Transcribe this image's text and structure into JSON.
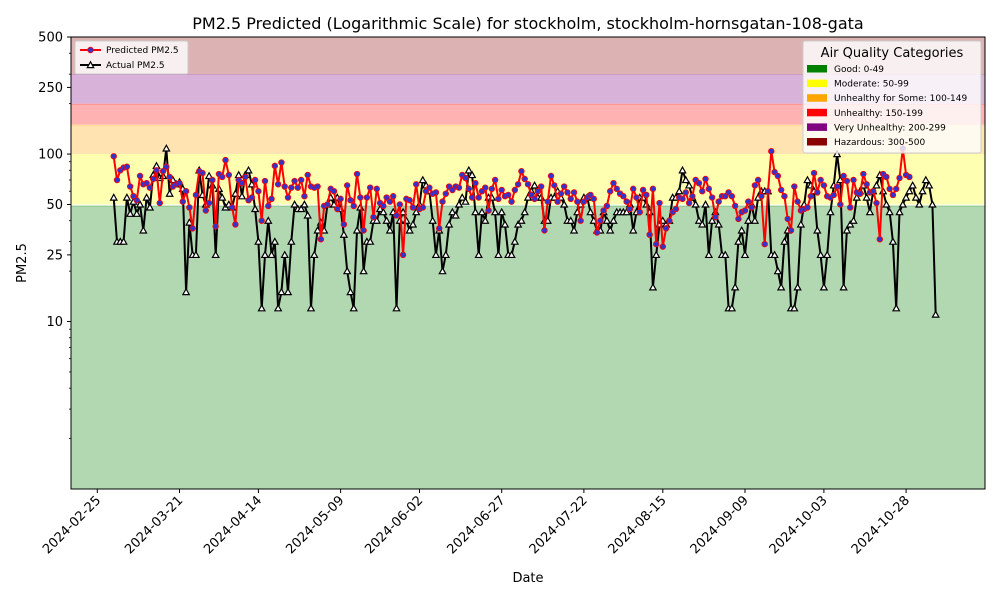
{
  "chart_data": {
    "type": "line",
    "title": "PM2.5 Predicted (Logarithmic Scale) for stockholm, stockholm-hornsgatan-108-gata",
    "xlabel": "Date",
    "ylabel": "PM2.5",
    "y_scale": "log",
    "ylim": [
      1,
      500
    ],
    "xlim": [
      "2024-02-17",
      "2024-11-21"
    ],
    "x_ticks": [
      "2024-02-25",
      "2024-03-21",
      "2024-04-14",
      "2024-05-09",
      "2024-06-02",
      "2024-06-27",
      "2024-07-22",
      "2024-08-15",
      "2024-09-09",
      "2024-10-03",
      "2024-10-28"
    ],
    "y_ticks": [
      10,
      25,
      50,
      100,
      250,
      500
    ],
    "y_tick_labels": [
      "10",
      "25",
      "50",
      "100",
      "250",
      "500"
    ],
    "grid": false,
    "legend_position": "top-left",
    "series_start": "2024-03-01",
    "series": [
      {
        "name": "Predicted PM2.5",
        "color": "#ff0000",
        "marker_color": "#3333cc",
        "marker": "circle",
        "values": [
          97,
          70,
          80,
          83,
          84,
          64,
          56,
          53,
          74,
          66,
          67,
          63,
          71,
          80,
          51,
          79,
          84,
          73,
          64,
          66,
          67,
          52,
          60,
          48,
          36,
          57,
          79,
          77,
          46,
          51,
          70,
          37,
          76,
          73,
          92,
          75,
          48,
          38,
          70,
          67,
          73,
          53,
          55,
          70,
          60,
          40,
          69,
          49,
          54,
          85,
          66,
          89,
          64,
          55,
          63,
          69,
          63,
          70,
          56,
          75,
          64,
          63,
          64,
          31,
          49,
          50,
          62,
          60,
          47,
          54,
          38,
          65,
          53,
          49,
          76,
          55,
          35,
          55,
          63,
          42,
          62,
          51,
          49,
          55,
          52,
          56,
          43,
          50,
          25,
          54,
          53,
          48,
          66,
          47,
          48,
          60,
          63,
          58,
          59,
          36,
          52,
          58,
          64,
          61,
          64,
          63,
          75,
          72,
          62,
          55,
          67,
          55,
          60,
          63,
          46,
          62,
          70,
          54,
          61,
          56,
          57,
          52,
          61,
          66,
          79,
          71,
          66,
          57,
          54,
          60,
          64,
          35,
          52,
          74,
          65,
          52,
          58,
          64,
          59,
          54,
          59,
          52,
          40,
          52,
          55,
          57,
          54,
          34,
          40,
          46,
          49,
          60,
          67,
          62,
          58,
          56,
          52,
          47,
          62,
          55,
          45,
          61,
          57,
          33,
          62,
          29,
          51,
          28,
          36,
          40,
          45,
          47,
          55,
          54,
          59,
          51,
          56,
          70,
          67,
          60,
          71,
          62,
          55,
          42,
          52,
          56,
          56,
          59,
          56,
          49,
          41,
          45,
          46,
          52,
          48,
          65,
          70,
          56,
          29,
          60,
          104,
          78,
          74,
          61,
          56,
          41,
          35,
          64,
          52,
          46,
          47,
          48,
          56,
          77,
          59,
          70,
          65,
          56,
          55,
          57,
          64,
          50,
          74,
          69,
          48,
          70,
          59,
          58,
          76,
          66,
          59,
          60,
          51,
          31,
          76,
          73,
          62,
          57,
          62,
          72,
          108,
          75,
          73
        ]
      },
      {
        "name": "Actual PM2.5",
        "color": "#000000",
        "marker_color": "#ffffff",
        "marker": "triangle",
        "values": [
          55,
          30,
          30,
          30,
          55,
          44,
          52,
          44,
          50,
          35,
          55,
          48,
          75,
          85,
          72,
          74,
          108,
          58,
          70,
          66,
          68,
          62,
          15,
          39,
          25,
          25,
          80,
          57,
          50,
          74,
          65,
          25,
          62,
          55,
          48,
          50,
          48,
          58,
          75,
          56,
          75,
          80,
          66,
          47,
          30,
          12,
          25,
          40,
          25,
          30,
          12,
          15,
          25,
          15,
          30,
          50,
          47,
          47,
          50,
          43,
          12,
          25,
          35,
          39,
          35,
          50,
          55,
          50,
          55,
          47,
          33,
          20,
          15,
          12,
          35,
          48,
          20,
          30,
          30,
          40,
          40,
          47,
          45,
          40,
          35,
          45,
          12,
          40,
          45,
          40,
          35,
          38,
          45,
          50,
          70,
          65,
          60,
          40,
          25,
          35,
          20,
          25,
          38,
          45,
          43,
          50,
          55,
          52,
          80,
          75,
          45,
          25,
          45,
          40,
          55,
          55,
          45,
          25,
          45,
          38,
          25,
          25,
          30,
          38,
          40,
          45,
          55,
          60,
          65,
          55,
          55,
          40,
          40,
          55,
          55,
          60,
          55,
          50,
          40,
          40,
          35,
          45,
          50,
          55,
          55,
          45,
          40,
          35,
          35,
          45,
          40,
          35,
          40,
          45,
          45,
          45,
          45,
          50,
          35,
          45,
          55,
          55,
          50,
          45,
          16,
          25,
          38,
          40,
          38,
          40,
          55,
          55,
          60,
          80,
          70,
          65,
          55,
          50,
          40,
          38,
          50,
          25,
          40,
          45,
          38,
          25,
          25,
          12,
          12,
          16,
          30,
          35,
          25,
          40,
          50,
          40,
          55,
          60,
          60,
          60,
          25,
          25,
          20,
          16,
          30,
          35,
          12,
          12,
          16,
          38,
          50,
          70,
          65,
          60,
          35,
          25,
          16,
          25,
          45,
          65,
          100,
          70,
          16,
          35,
          38,
          40,
          55,
          60,
          65,
          55,
          45,
          60,
          65,
          75,
          60,
          50,
          45,
          30,
          12,
          45,
          50,
          55,
          60,
          65,
          55,
          50,
          60,
          70,
          65,
          50,
          11
        ]
      }
    ],
    "categories_bands": [
      {
        "name": "Good: 0-49",
        "min": 0,
        "max": 49,
        "color": "#008000",
        "fill": "#b2d8b2"
      },
      {
        "name": "Moderate: 50-99",
        "min": 50,
        "max": 99,
        "color": "#ffff00",
        "fill": "#ffffb2"
      },
      {
        "name": "Unhealthy for Some: 100-149",
        "min": 100,
        "max": 149,
        "color": "#ffa500",
        "fill": "#ffe4b2"
      },
      {
        "name": "Unhealthy: 150-199",
        "min": 150,
        "max": 199,
        "color": "#ff0000",
        "fill": "#ffb2b2"
      },
      {
        "name": "Very Unhealthy: 200-299",
        "min": 200,
        "max": 299,
        "color": "#800080",
        "fill": "#d8b2d8"
      },
      {
        "name": "Hazardous: 300-500",
        "min": 300,
        "max": 500,
        "color": "#8b0000",
        "fill": "#dcb2b2"
      }
    ],
    "categories_legend_title": "Air Quality Categories"
  }
}
